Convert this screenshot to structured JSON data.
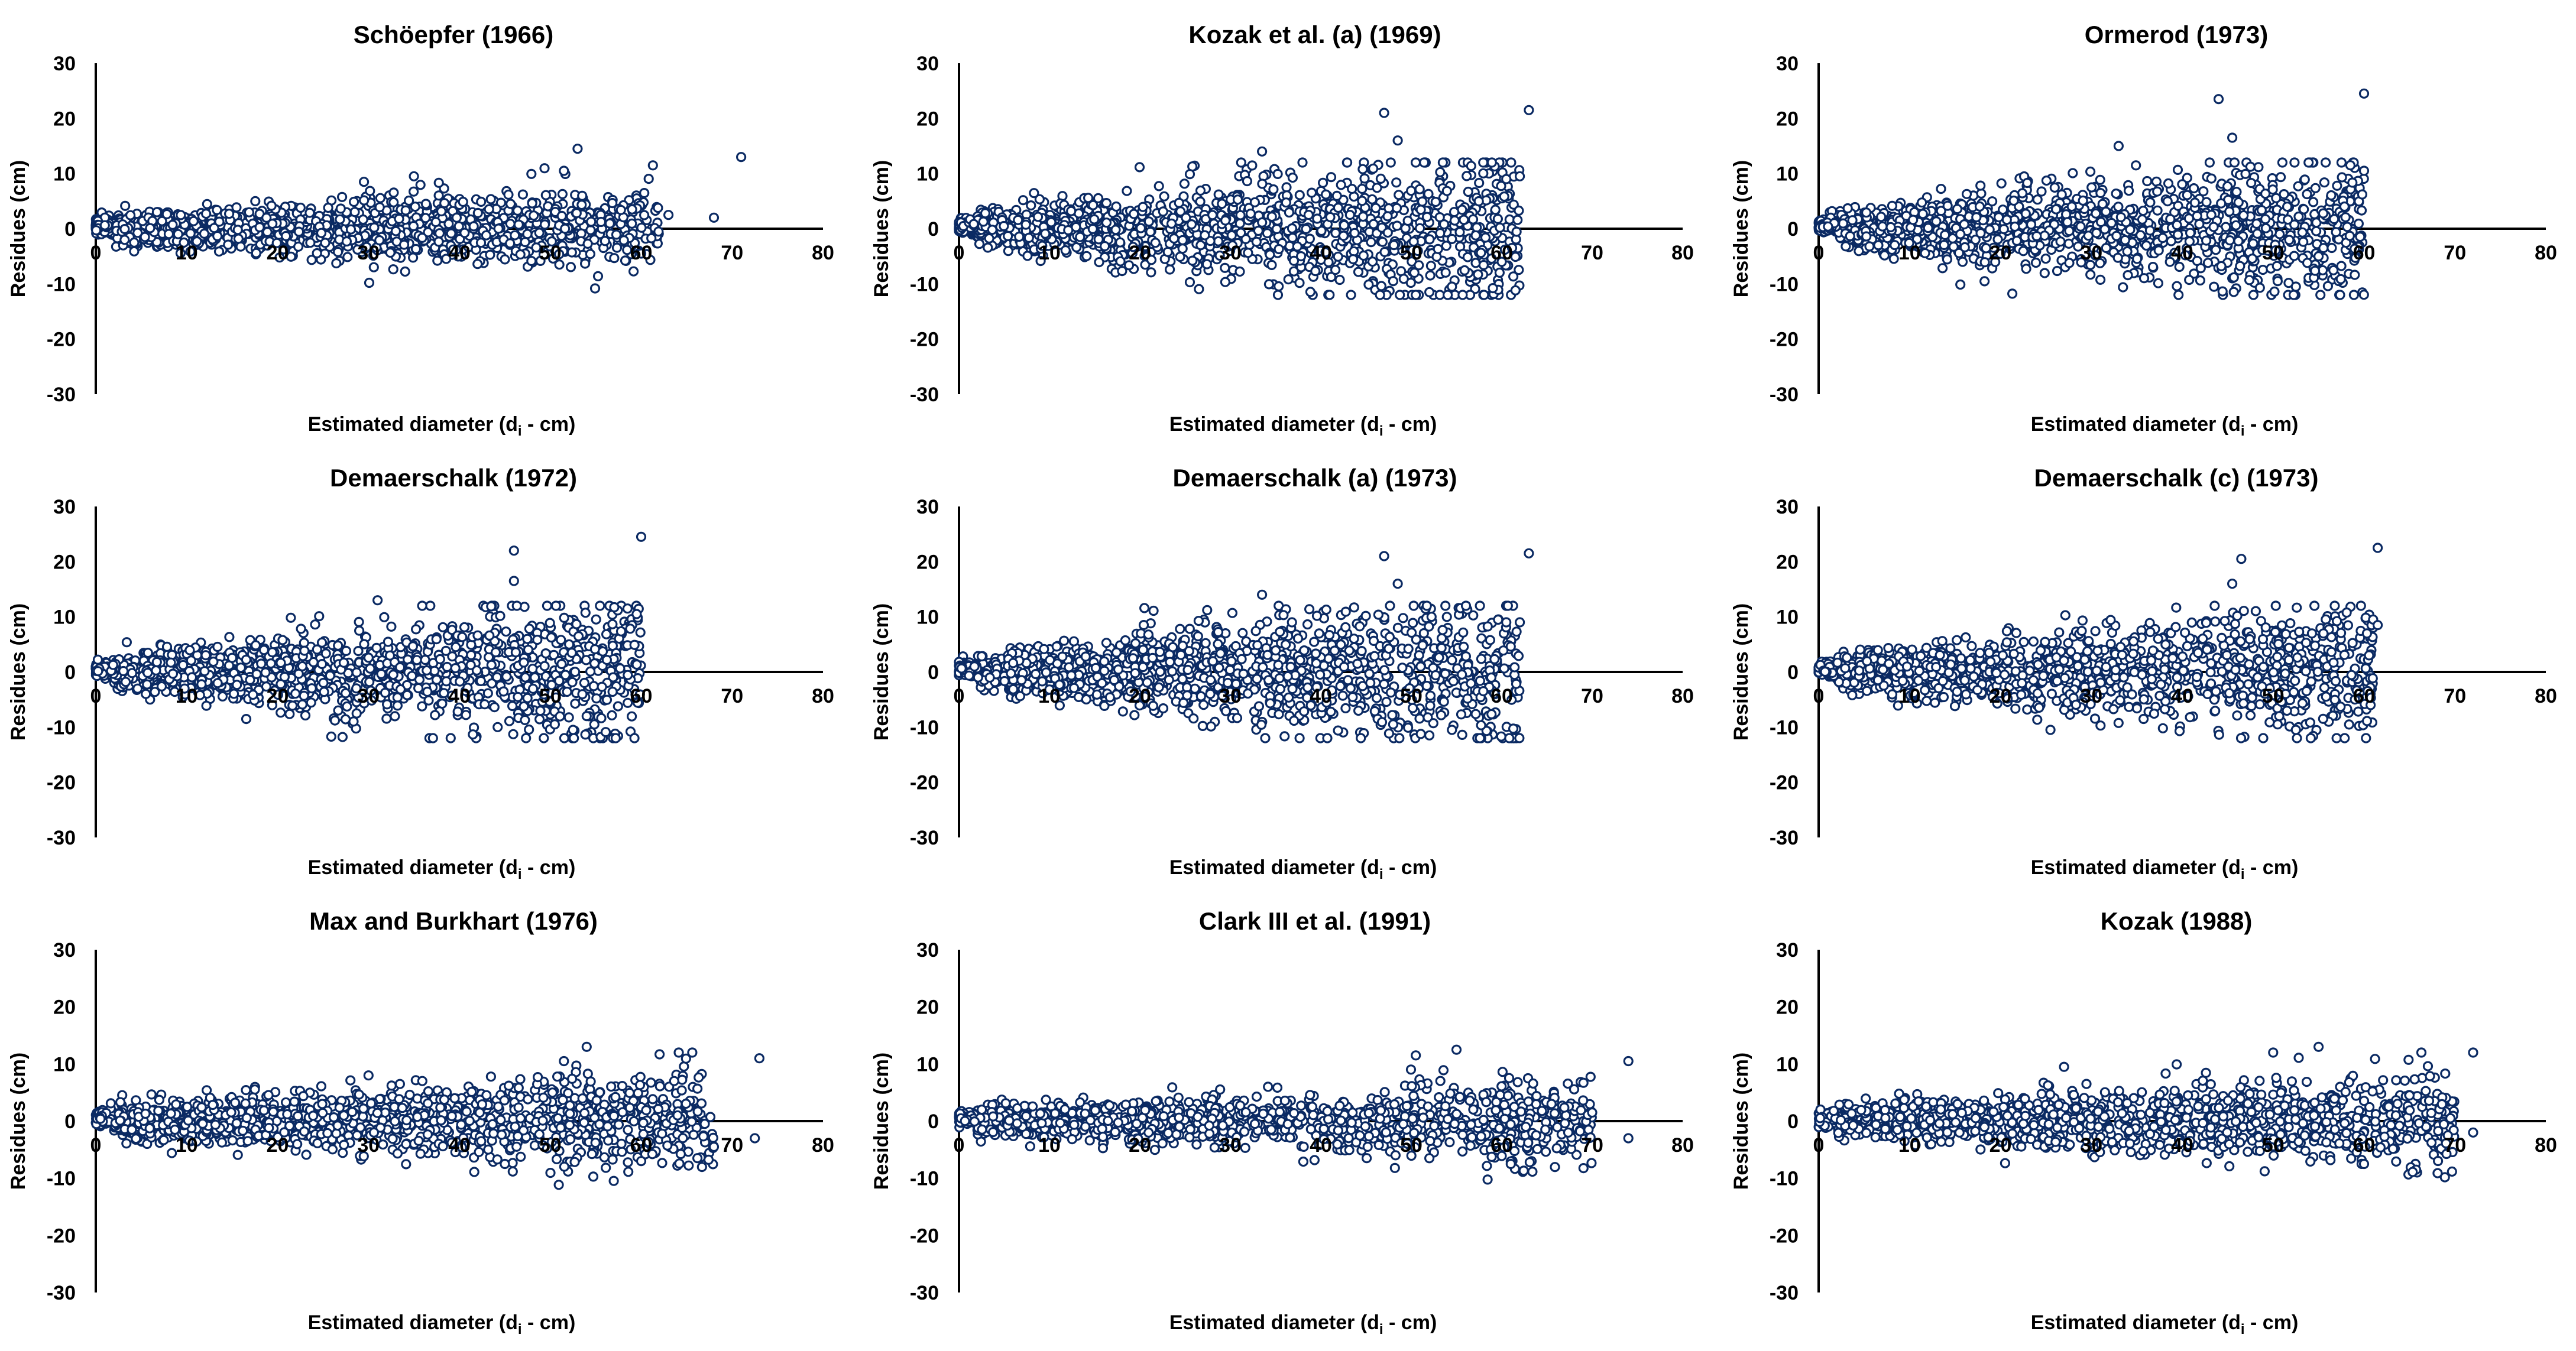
{
  "figure": {
    "point_color": "#0b2a63",
    "axis_color": "#000000",
    "xlabel": {
      "main": "Estimated diameter (d",
      "sub": "i",
      "tail": " - cm)"
    },
    "ylabel": "Residues (cm)"
  },
  "chart_data": [
    {
      "type": "scatter",
      "title": "Schöepfer (1966)",
      "xlabel": "Estimated diameter (di - cm)",
      "ylabel": "Residues (cm)",
      "xlim": [
        0,
        80
      ],
      "ylim": [
        -30,
        30
      ],
      "xticks": [
        0,
        10,
        20,
        30,
        40,
        50,
        60,
        70,
        80
      ],
      "yticks": [
        30,
        20,
        10,
        0,
        -10,
        -20,
        -30
      ],
      "notable_points": [
        {
          "x": 53.0,
          "y": 14.5
        },
        {
          "x": 71.0,
          "y": 13.0
        },
        {
          "x": 51.5,
          "y": 10.5
        },
        {
          "x": 35.0,
          "y": 9.5
        },
        {
          "x": 29.5,
          "y": 8.5
        },
        {
          "x": 59.0,
          "y": 3.5
        },
        {
          "x": 63.0,
          "y": 2.5
        },
        {
          "x": 68.0,
          "y": 2.0
        },
        {
          "x": 51.0,
          "y": -6.5
        },
        {
          "x": 60.0,
          "y": -4.5
        }
      ]
    },
    {
      "type": "scatter",
      "title": "Kozak et al. (a) (1969)",
      "xlabel": "Estimated diameter (di - cm)",
      "ylabel": "Residues (cm)",
      "xlim": [
        0,
        80
      ],
      "ylim": [
        -30,
        30
      ],
      "xticks": [
        0,
        10,
        20,
        30,
        40,
        50,
        60,
        70,
        80
      ],
      "yticks": [
        30,
        20,
        10,
        0,
        -10,
        -20,
        -30
      ],
      "notable_points": [
        {
          "x": 47.0,
          "y": 21.0
        },
        {
          "x": 63.0,
          "y": 21.5
        },
        {
          "x": 48.5,
          "y": 16.0
        },
        {
          "x": 33.5,
          "y": 14.0
        },
        {
          "x": 62.0,
          "y": 9.5
        },
        {
          "x": 60.5,
          "y": 9.0
        },
        {
          "x": 52.0,
          "y": -11.5
        },
        {
          "x": 54.5,
          "y": -10.5
        },
        {
          "x": 48.0,
          "y": -9.5
        },
        {
          "x": 60.0,
          "y": -6.0
        }
      ]
    },
    {
      "type": "scatter",
      "title": "Ormerod (1973)",
      "xlabel": "Estimated diameter (di - cm)",
      "ylabel": "Residues (cm)",
      "xlim": [
        0,
        80
      ],
      "ylim": [
        -30,
        30
      ],
      "xticks": [
        0,
        10,
        20,
        30,
        40,
        50,
        60,
        70,
        80
      ],
      "yticks": [
        30,
        20,
        10,
        0,
        -10,
        -20,
        -30
      ],
      "notable_points": [
        {
          "x": 60.0,
          "y": 24.5
        },
        {
          "x": 44.0,
          "y": 23.5
        },
        {
          "x": 45.5,
          "y": 16.5
        },
        {
          "x": 33.0,
          "y": 15.0
        },
        {
          "x": 58.5,
          "y": 11.5
        },
        {
          "x": 60.0,
          "y": 10.5
        },
        {
          "x": 52.5,
          "y": -10.5
        },
        {
          "x": 50.5,
          "y": -9.5
        },
        {
          "x": 55.0,
          "y": -5.0
        }
      ]
    },
    {
      "type": "scatter",
      "title": "Demaerschalk (1972)",
      "xlabel": "Estimated diameter (di - cm)",
      "ylabel": "Residues (cm)",
      "xlim": [
        0,
        80
      ],
      "ylim": [
        -30,
        30
      ],
      "xticks": [
        0,
        10,
        20,
        30,
        40,
        50,
        60,
        70,
        80
      ],
      "yticks": [
        30,
        20,
        10,
        0,
        -10,
        -20,
        -30
      ],
      "notable_points": [
        {
          "x": 60.0,
          "y": 24.5
        },
        {
          "x": 46.0,
          "y": 22.0
        },
        {
          "x": 46.0,
          "y": 16.5
        },
        {
          "x": 31.0,
          "y": 13.0
        },
        {
          "x": 58.5,
          "y": 11.5
        },
        {
          "x": 59.5,
          "y": 10.5
        },
        {
          "x": 52.5,
          "y": -10.5
        },
        {
          "x": 50.5,
          "y": -9.5
        },
        {
          "x": 54.0,
          "y": -8.0
        }
      ]
    },
    {
      "type": "scatter",
      "title": "Demaerschalk (a) (1973)",
      "xlabel": "Estimated diameter (di - cm)",
      "ylabel": "Residues (cm)",
      "xlim": [
        0,
        80
      ],
      "ylim": [
        -30,
        30
      ],
      "xticks": [
        0,
        10,
        20,
        30,
        40,
        50,
        60,
        70,
        80
      ],
      "yticks": [
        30,
        20,
        10,
        0,
        -10,
        -20,
        -30
      ],
      "notable_points": [
        {
          "x": 47.0,
          "y": 21.0
        },
        {
          "x": 63.0,
          "y": 21.5
        },
        {
          "x": 48.5,
          "y": 16.0
        },
        {
          "x": 33.5,
          "y": 14.0
        },
        {
          "x": 62.0,
          "y": 9.0
        },
        {
          "x": 60.5,
          "y": 9.0
        },
        {
          "x": 52.0,
          "y": -11.5
        },
        {
          "x": 54.5,
          "y": -10.5
        },
        {
          "x": 48.0,
          "y": -9.5
        }
      ]
    },
    {
      "type": "scatter",
      "title": "Demaerschalk (c) (1973)",
      "xlabel": "Estimated diameter (di - cm)",
      "ylabel": "Residues (cm)",
      "xlim": [
        0,
        80
      ],
      "ylim": [
        -30,
        30
      ],
      "xticks": [
        0,
        10,
        20,
        30,
        40,
        50,
        60,
        70,
        80
      ],
      "yticks": [
        30,
        20,
        10,
        0,
        -10,
        -20,
        -30
      ],
      "notable_points": [
        {
          "x": 61.5,
          "y": 22.5
        },
        {
          "x": 46.5,
          "y": 20.5
        },
        {
          "x": 45.5,
          "y": 16.0
        },
        {
          "x": 61.0,
          "y": 9.5
        },
        {
          "x": 61.5,
          "y": 8.5
        },
        {
          "x": 25.5,
          "y": -10.5
        },
        {
          "x": 52.5,
          "y": -10.5
        },
        {
          "x": 50.5,
          "y": -9.5
        },
        {
          "x": 55.5,
          "y": -8.5
        }
      ]
    },
    {
      "type": "scatter",
      "title": "Max and Burkhart (1976)",
      "xlabel": "Estimated diameter (di - cm)",
      "ylabel": "Residues (cm)",
      "xlim": [
        0,
        80
      ],
      "ylim": [
        -30,
        30
      ],
      "xticks": [
        0,
        10,
        20,
        30,
        40,
        50,
        60,
        70,
        80
      ],
      "yticks": [
        30,
        20,
        10,
        0,
        -10,
        -20,
        -30
      ],
      "notable_points": [
        {
          "x": 73.0,
          "y": 11.0
        },
        {
          "x": 54.0,
          "y": 13.0
        },
        {
          "x": 51.5,
          "y": 10.5
        },
        {
          "x": 30.0,
          "y": 8.0
        },
        {
          "x": 64.0,
          "y": 1.0
        },
        {
          "x": 68.0,
          "y": -4.5
        },
        {
          "x": 72.5,
          "y": -3.0
        },
        {
          "x": 60.0,
          "y": -7.0
        },
        {
          "x": 45.0,
          "y": -7.5
        }
      ]
    },
    {
      "type": "scatter",
      "title": "Clark III et al. (1991)",
      "xlabel": "Estimated diameter (di - cm)",
      "ylabel": "Residues (cm)",
      "xlim": [
        0,
        80
      ],
      "ylim": [
        -30,
        30
      ],
      "xticks": [
        0,
        10,
        20,
        30,
        40,
        50,
        60,
        70,
        80
      ],
      "yticks": [
        30,
        20,
        10,
        0,
        -10,
        -20,
        -30
      ],
      "notable_points": [
        {
          "x": 55.0,
          "y": 12.5
        },
        {
          "x": 74.0,
          "y": 10.5
        },
        {
          "x": 50.5,
          "y": 11.5
        },
        {
          "x": 65.5,
          "y": 3.0
        },
        {
          "x": 70.0,
          "y": 1.5
        },
        {
          "x": 74.0,
          "y": -3.0
        },
        {
          "x": 61.0,
          "y": -7.5
        },
        {
          "x": 52.0,
          "y": -6.5
        }
      ]
    },
    {
      "type": "scatter",
      "title": "Kozak (1988)",
      "xlabel": "Estimated diameter (di - cm)",
      "ylabel": "Residues (cm)",
      "xlim": [
        0,
        80
      ],
      "ylim": [
        -30,
        30
      ],
      "xticks": [
        0,
        10,
        20,
        30,
        40,
        50,
        60,
        70,
        80
      ],
      "yticks": [
        30,
        20,
        10,
        0,
        -10,
        -20,
        -30
      ],
      "notable_points": [
        {
          "x": 72.0,
          "y": 12.0
        },
        {
          "x": 55.0,
          "y": 13.0
        },
        {
          "x": 50.0,
          "y": 12.0
        },
        {
          "x": 27.0,
          "y": 9.5
        },
        {
          "x": 65.0,
          "y": 4.5
        },
        {
          "x": 69.5,
          "y": 0.5
        },
        {
          "x": 72.0,
          "y": -2.0
        },
        {
          "x": 60.0,
          "y": -7.5
        }
      ]
    }
  ]
}
